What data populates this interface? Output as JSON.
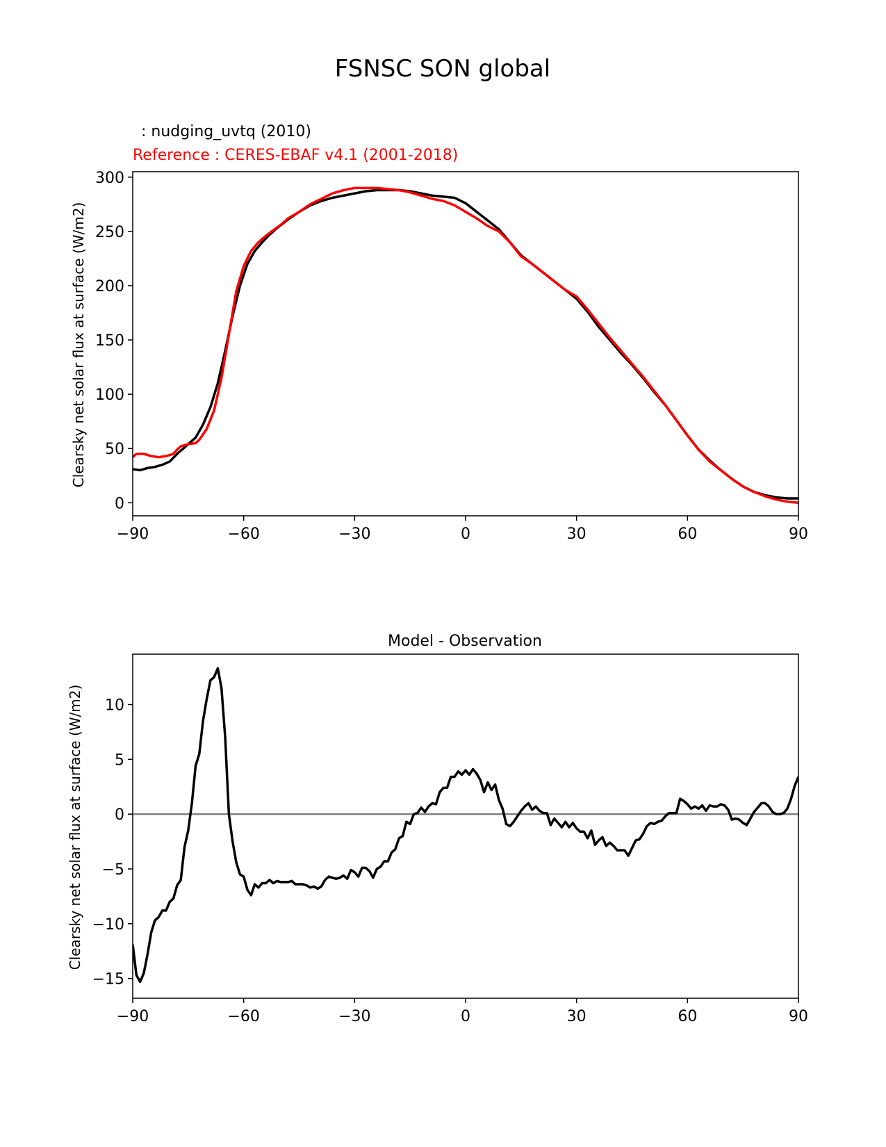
{
  "suptitle": "FSNSC SON global",
  "chart_data": [
    {
      "type": "line",
      "title": "",
      "test_label": " : nudging_uvtq (2010)",
      "ref_label": "Reference : CERES-EBAF v4.1 (2001-2018)",
      "xlabel": "",
      "ylabel": "Clearsky net solar flux at surface (W/m2)",
      "xlim": [
        -90,
        90
      ],
      "ylim": [
        -12,
        305
      ],
      "xticks": [
        -90,
        -60,
        -30,
        0,
        30,
        60,
        90
      ],
      "xtick_labels": [
        "−90",
        "−60",
        "−30",
        "0",
        "30",
        "60",
        "90"
      ],
      "yticks": [
        0,
        50,
        100,
        150,
        200,
        250,
        300
      ],
      "ytick_labels": [
        "0",
        "50",
        "100",
        "150",
        "200",
        "250",
        "300"
      ],
      "grid": false,
      "series": [
        {
          "color": "#000000",
          "x": [
            -90,
            -88,
            -86,
            -84,
            -82,
            -80,
            -78,
            -77,
            -75,
            -73,
            -71,
            -69,
            -67,
            -65,
            -63,
            -61,
            -59,
            -57,
            -55,
            -53,
            -51,
            -48,
            -45,
            -42,
            -39,
            -36,
            -33,
            -30,
            -27,
            -24,
            -21,
            -18,
            -15,
            -12,
            -9,
            -6,
            -3,
            0,
            3,
            6,
            9,
            12,
            15,
            18,
            21,
            24,
            27,
            30,
            33,
            36,
            39,
            42,
            45,
            48,
            51,
            54,
            57,
            60,
            63,
            66,
            69,
            72,
            75,
            78,
            81,
            84,
            87,
            90
          ],
          "y": [
            31,
            30,
            32,
            33,
            35,
            38,
            45,
            48,
            54,
            60,
            72,
            88,
            110,
            140,
            172,
            200,
            220,
            232,
            240,
            247,
            253,
            261,
            268,
            274,
            278,
            281,
            283,
            285,
            287,
            288,
            288,
            288,
            287,
            285,
            283,
            282,
            281,
            276,
            268,
            260,
            252,
            240,
            228,
            220,
            212,
            204,
            196,
            188,
            176,
            162,
            150,
            138,
            127,
            115,
            102,
            90,
            76,
            62,
            49,
            39,
            30,
            22,
            15,
            10,
            7,
            5,
            4,
            4
          ]
        },
        {
          "color": "#ff0000",
          "x": [
            -90,
            -89,
            -87,
            -85,
            -83,
            -81,
            -79,
            -78,
            -77,
            -75,
            -73,
            -72,
            -70,
            -68,
            -66,
            -64,
            -62,
            -60,
            -58,
            -56,
            -54,
            -52,
            -50,
            -48,
            -45,
            -42,
            -39,
            -36,
            -33,
            -30,
            -27,
            -24,
            -21,
            -18,
            -15,
            -12,
            -9,
            -6,
            -3,
            0,
            3,
            6,
            9,
            12,
            15,
            18,
            21,
            24,
            27,
            30,
            33,
            36,
            39,
            42,
            45,
            48,
            51,
            54,
            57,
            60,
            63,
            66,
            69,
            72,
            75,
            78,
            81,
            84,
            87,
            90
          ],
          "y": [
            42,
            45,
            45,
            43,
            42,
            43,
            45,
            49,
            52,
            54,
            55,
            58,
            68,
            85,
            115,
            155,
            195,
            218,
            232,
            240,
            246,
            251,
            256,
            262,
            268,
            275,
            280,
            285,
            288,
            290,
            290,
            290,
            289,
            288,
            286,
            283,
            280,
            278,
            274,
            268,
            262,
            255,
            250,
            240,
            227,
            220,
            212,
            204,
            196,
            190,
            178,
            165,
            152,
            140,
            128,
            116,
            103,
            90,
            76,
            62,
            49,
            38,
            30,
            22,
            15,
            10,
            6,
            3,
            1,
            0
          ]
        }
      ]
    },
    {
      "type": "line",
      "title": "Model - Observation",
      "xlabel": "",
      "ylabel": "Clearsky net solar flux at surface (W/m2)",
      "xlim": [
        -90,
        90
      ],
      "ylim": [
        -16.8,
        14.6
      ],
      "xticks": [
        -90,
        -60,
        -30,
        0,
        30,
        60,
        90
      ],
      "xtick_labels": [
        "−90",
        "−60",
        "−30",
        "0",
        "30",
        "60",
        "90"
      ],
      "yticks": [
        -15,
        -10,
        -5,
        0,
        5,
        10
      ],
      "ytick_labels": [
        "−15",
        "−10",
        "−5",
        "0",
        "5",
        "10"
      ],
      "grid": false,
      "zero_line_color": "#808080",
      "series": [
        {
          "color": "#000000",
          "x": [
            -90,
            -89,
            -88,
            -87,
            -86,
            -85,
            -84,
            -83,
            -82,
            -81,
            -80,
            -79,
            -78,
            -77,
            -76,
            -75,
            -74,
            -73,
            -72,
            -71,
            -70,
            -69,
            -68,
            -67,
            -66,
            -65,
            -64,
            -63,
            -62,
            -61,
            -60,
            -59,
            -58,
            -57,
            -56,
            -55,
            -54,
            -53,
            -52,
            -51,
            -50,
            -49,
            -48,
            -47,
            -46,
            -45,
            -44,
            -43,
            -42,
            -41,
            -40,
            -39,
            -38,
            -37,
            -36,
            -35,
            -34,
            -33,
            -32,
            -31,
            -30,
            -29,
            -28,
            -27,
            -26,
            -25,
            -24,
            -23,
            -22,
            -21,
            -20,
            -19,
            -18,
            -17,
            -16,
            -15,
            -14,
            -13,
            -12,
            -11,
            -10,
            -9,
            -8,
            -7,
            -6,
            -5,
            -4,
            -3,
            -2,
            -1,
            0,
            1,
            2,
            3,
            4,
            5,
            6,
            7,
            8,
            9,
            10,
            11,
            12,
            13,
            14,
            15,
            16,
            17,
            18,
            19,
            20,
            21,
            22,
            23,
            24,
            25,
            26,
            27,
            28,
            29,
            30,
            31,
            32,
            33,
            34,
            35,
            36,
            37,
            38,
            39,
            40,
            41,
            42,
            43,
            44,
            45,
            46,
            47,
            48,
            49,
            50,
            51,
            52,
            53,
            54,
            55,
            56,
            57,
            58,
            59,
            60,
            61,
            62,
            63,
            64,
            65,
            66,
            67,
            68,
            69,
            70,
            71,
            72,
            73,
            74,
            75,
            76,
            77,
            78,
            79,
            80,
            81,
            82,
            83,
            84,
            85,
            86,
            87,
            88,
            89,
            90
          ],
          "y": [
            -11.9,
            -14.7,
            -15.3,
            -14.5,
            -12.8,
            -10.8,
            -9.7,
            -9.4,
            -8.8,
            -8.8,
            -8,
            -7.7,
            -6.5,
            -6,
            -3,
            -1.5,
            1,
            4.4,
            5.5,
            8.5,
            10.5,
            12.2,
            12.5,
            13.3,
            11.5,
            7,
            0,
            -2.5,
            -4.4,
            -5.5,
            -5.7,
            -6.9,
            -7.4,
            -6.4,
            -6.7,
            -6.3,
            -6.3,
            -6,
            -6.3,
            -6.1,
            -6.2,
            -6.2,
            -6.2,
            -6.1,
            -6.4,
            -6.4,
            -6.4,
            -6.5,
            -6.7,
            -6.6,
            -6.8,
            -6.6,
            -6,
            -5.7,
            -5.8,
            -5.9,
            -5.8,
            -5.6,
            -5.9,
            -5.1,
            -5.3,
            -5.7,
            -4.9,
            -4.9,
            -5.2,
            -5.8,
            -5,
            -4.8,
            -4.3,
            -4.3,
            -3.5,
            -3.2,
            -2.2,
            -2,
            -0.7,
            -0.9,
            0,
            0.1,
            0.6,
            0.2,
            0.7,
            1,
            0.9,
            2,
            2.4,
            2.4,
            3.4,
            3.4,
            3.9,
            3.6,
            4,
            3.6,
            4.1,
            3.7,
            3.1,
            2,
            2.9,
            2.2,
            2.7,
            1.3,
            0.5,
            -0.9,
            -1.1,
            -0.7,
            -0.2,
            0.3,
            0.7,
            1,
            0.4,
            0.7,
            0.3,
            0.1,
            0.1,
            -1,
            -0.4,
            -0.8,
            -1.2,
            -0.7,
            -1.2,
            -0.8,
            -1.3,
            -1.6,
            -1.6,
            -2.2,
            -1.5,
            -2.8,
            -2.4,
            -2.1,
            -2.9,
            -2.6,
            -2.9,
            -3.3,
            -3.3,
            -3.3,
            -3.8,
            -3.1,
            -2.4,
            -2.3,
            -1.8,
            -1.1,
            -0.8,
            -0.9,
            -0.7,
            -0.6,
            -0.2,
            0.1,
            0.1,
            0.1,
            1.4,
            1.2,
            0.9,
            0.5,
            0.7,
            0.5,
            0.8,
            0.3,
            0.8,
            0.7,
            0.7,
            0.9,
            0.8,
            0.4,
            -0.5,
            -0.4,
            -0.5,
            -0.8,
            -1,
            -0.4,
            0.2,
            0.6,
            1,
            1,
            0.7,
            0.2,
            0,
            0,
            0.1,
            0.5,
            1.4,
            2.6,
            3.4
          ]
        }
      ]
    }
  ]
}
